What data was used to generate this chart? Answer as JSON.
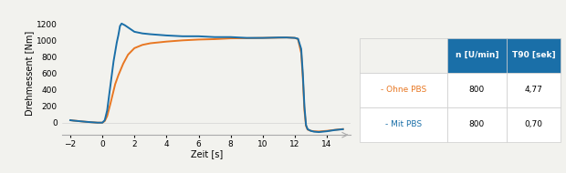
{
  "title": "",
  "xlabel": "Zeit [s]",
  "ylabel": "Drehmessent [Nm]",
  "xlim": [
    -2.5,
    15.5
  ],
  "ylim": [
    -150,
    1350
  ],
  "yticks": [
    0,
    200,
    400,
    600,
    800,
    1000,
    1200
  ],
  "xticks": [
    -2,
    0,
    2,
    4,
    6,
    8,
    10,
    12,
    14
  ],
  "color_blue": "#1a6fa8",
  "color_orange": "#e87722",
  "bg_color": "#f2f2ee",
  "table_header_color": "#1a6fa8",
  "table_header_text": "#ffffff",
  "table_row1_label": "- Ohne PBS",
  "table_row1_color": "#e87722",
  "table_row2_label": "- Mit PBS",
  "table_row2_color": "#1a6fa8",
  "col_headers": [
    "n [U/min]",
    "T90 [sek]"
  ],
  "row1_vals": [
    "800",
    "4,77"
  ],
  "row2_vals": [
    "800",
    "0,70"
  ]
}
